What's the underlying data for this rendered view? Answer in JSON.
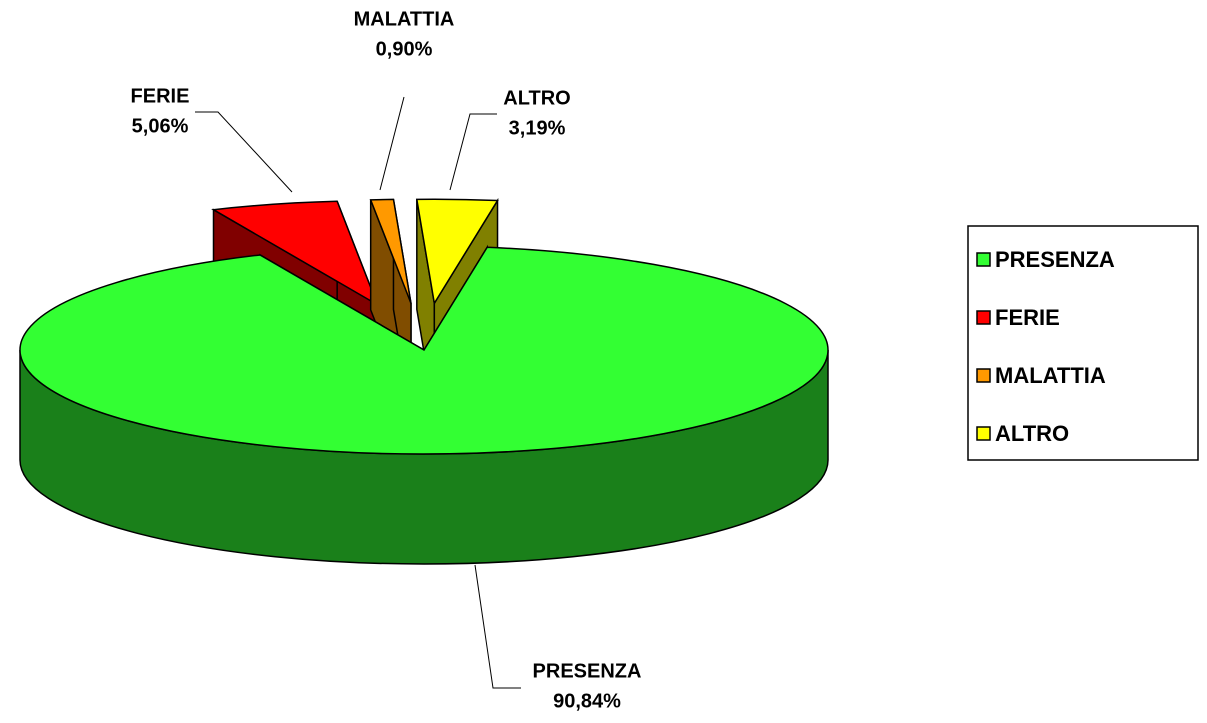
{
  "chart_data": {
    "type": "pie3d",
    "categories": [
      "PRESENZA",
      "FERIE",
      "MALATTIA",
      "ALTRO"
    ],
    "values": [
      90.84,
      5.06,
      0.9,
      3.19
    ],
    "value_labels": [
      "90,84%",
      "5,06%",
      "0,90%",
      "3,19%"
    ],
    "colors": [
      "#33ff33",
      "#ff0000",
      "#ff9900",
      "#ffff00"
    ],
    "legend": "right"
  }
}
